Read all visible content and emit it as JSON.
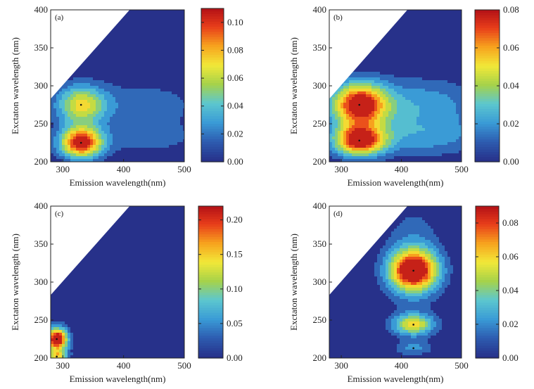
{
  "colormap": [
    "#27318a",
    "#2d5cb0",
    "#3a9bd6",
    "#5cc7cf",
    "#a6d24a",
    "#f2e838",
    "#f7a21e",
    "#e83d1a",
    "#b00e16"
  ],
  "chart_data": [
    {
      "type": "heatmap",
      "panel_label": "(a)",
      "xlabel": "Emission wavelength(nm)",
      "ylabel": "Exctaton wavelength (nm)",
      "xlim": [
        280,
        500
      ],
      "ylim": [
        200,
        400
      ],
      "x_ticks": [
        300,
        400,
        500
      ],
      "y_ticks": [
        200,
        250,
        300,
        350,
        400
      ],
      "colorbar": {
        "min": 0,
        "max": 0.11,
        "ticks": [
          "0.00",
          "0.02",
          "0.04",
          "0.06",
          "0.08",
          "0.10"
        ],
        "tick_values": [
          0,
          0.02,
          0.04,
          0.06,
          0.08,
          0.1
        ]
      },
      "peaks": [
        {
          "ex": 275,
          "em": 330,
          "value": 0.065
        },
        {
          "ex": 225,
          "em": 330,
          "value": 0.11
        }
      ]
    },
    {
      "type": "heatmap",
      "panel_label": "(b)",
      "xlabel": "Emission wavelength(nm)",
      "ylabel": "Exctaton wavelength (nm)",
      "xlim": [
        280,
        500
      ],
      "ylim": [
        200,
        400
      ],
      "x_ticks": [
        300,
        400,
        500
      ],
      "y_ticks": [
        200,
        250,
        300,
        350,
        400
      ],
      "colorbar": {
        "min": 0,
        "max": 0.08,
        "ticks": [
          "0.00",
          "0.02",
          "0.04",
          "0.06",
          "0.08"
        ],
        "tick_values": [
          0,
          0.02,
          0.04,
          0.06,
          0.08
        ]
      },
      "peaks": [
        {
          "ex": 275,
          "em": 330,
          "value": 0.08
        },
        {
          "ex": 228,
          "em": 330,
          "value": 0.078
        }
      ]
    },
    {
      "type": "heatmap",
      "panel_label": "(c)",
      "xlabel": "Emission wavelength(nm)",
      "ylabel": "Exctaton wavelength (nm)",
      "xlim": [
        280,
        500
      ],
      "ylim": [
        200,
        400
      ],
      "x_ticks": [
        300,
        400,
        500
      ],
      "y_ticks": [
        200,
        250,
        300,
        350,
        400
      ],
      "colorbar": {
        "min": 0,
        "max": 0.22,
        "ticks": [
          "0.00",
          "0.05",
          "0.10",
          "0.15",
          "0.20"
        ],
        "tick_values": [
          0,
          0.05,
          0.1,
          0.15,
          0.2
        ]
      },
      "peaks": [
        {
          "ex": 225,
          "em": 290,
          "value": 0.22
        },
        {
          "ex": 202,
          "em": 290,
          "value": 0.12
        }
      ]
    },
    {
      "type": "heatmap",
      "panel_label": "(d)",
      "xlabel": "Emission wavelength(nm)",
      "ylabel": "Exctaton wavelength (nm)",
      "xlim": [
        280,
        500
      ],
      "ylim": [
        200,
        400
      ],
      "x_ticks": [
        300,
        400,
        500
      ],
      "y_ticks": [
        200,
        250,
        300,
        350,
        400
      ],
      "colorbar": {
        "min": 0,
        "max": 0.09,
        "ticks": [
          "0.00",
          "0.02",
          "0.04",
          "0.06",
          "0.08"
        ],
        "tick_values": [
          0,
          0.02,
          0.04,
          0.06,
          0.08
        ]
      },
      "peaks": [
        {
          "ex": 315,
          "em": 420,
          "value": 0.09
        },
        {
          "ex": 244,
          "em": 420,
          "value": 0.055
        },
        {
          "ex": 213,
          "em": 420,
          "value": 0.02
        }
      ]
    }
  ]
}
